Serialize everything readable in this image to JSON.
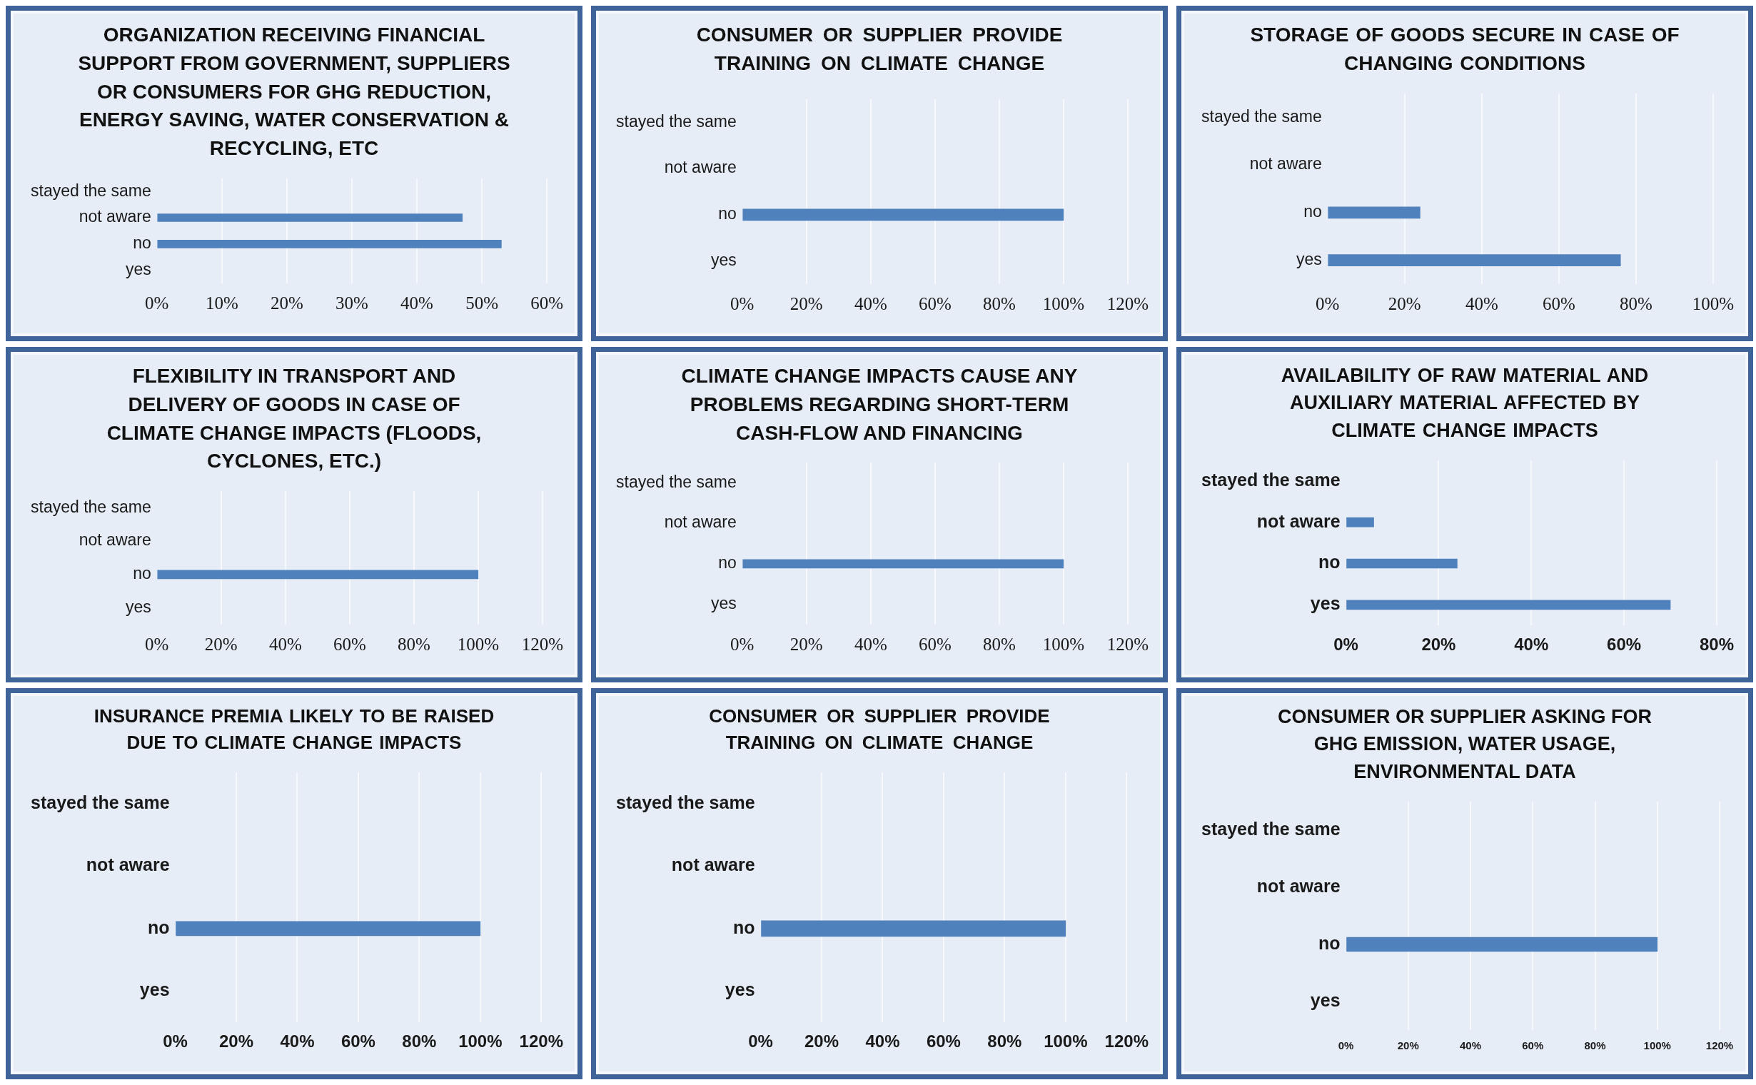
{
  "chart_data": [
    {
      "type": "bar",
      "orientation": "horizontal",
      "title": "ORGANIZATION RECEIVING FINANCIAL SUPPORT FROM GOVERNMENT, SUPPLIERS OR CONSUMERS FOR GHG REDUCTION, ENERGY SAVING, WATER CONSERVATION & RECYCLING, ETC",
      "categories": [
        "stayed the same",
        "not aware",
        "no",
        "yes"
      ],
      "values": [
        null,
        47,
        53,
        null
      ],
      "color": "#4f81bd",
      "xlim": [
        0,
        60
      ],
      "xticks": [
        {
          "value": 0,
          "label": "0%"
        },
        {
          "value": 10,
          "label": "10%"
        },
        {
          "value": 20,
          "label": "20%"
        },
        {
          "value": 30,
          "label": "30%"
        },
        {
          "value": 40,
          "label": "40%"
        },
        {
          "value": 50,
          "label": "50%"
        },
        {
          "value": 60,
          "label": "60%"
        }
      ],
      "grid": "x"
    },
    {
      "type": "bar",
      "orientation": "horizontal",
      "title": "CONSUMER OR SUPPLIER PROVIDE TRAINING ON CLIMATE CHANGE",
      "categories": [
        "stayed the same",
        "not aware",
        "no",
        "yes"
      ],
      "values": [
        null,
        null,
        100,
        null
      ],
      "color": "#4f81bd",
      "xlim": [
        0,
        120
      ],
      "xticks": [
        {
          "value": 0,
          "label": "0%"
        },
        {
          "value": 20,
          "label": "20%"
        },
        {
          "value": 40,
          "label": "40%"
        },
        {
          "value": 60,
          "label": "60%"
        },
        {
          "value": 80,
          "label": "80%"
        },
        {
          "value": 100,
          "label": "100%"
        },
        {
          "value": 120,
          "label": "120%"
        }
      ],
      "grid": "x"
    },
    {
      "type": "bar",
      "orientation": "horizontal",
      "title": "STORAGE OF GOODS SECURE IN CASE OF CHANGING CONDITIONS",
      "categories": [
        "stayed the same",
        "not aware",
        "no",
        "yes"
      ],
      "values": [
        null,
        null,
        24,
        76
      ],
      "color": "#4f81bd",
      "xlim": [
        0,
        100
      ],
      "xticks": [
        {
          "value": 0,
          "label": "0%"
        },
        {
          "value": 20,
          "label": "20%"
        },
        {
          "value": 40,
          "label": "40%"
        },
        {
          "value": 60,
          "label": "60%"
        },
        {
          "value": 80,
          "label": "80%"
        },
        {
          "value": 100,
          "label": "100%"
        }
      ],
      "grid": "x"
    },
    {
      "type": "bar",
      "orientation": "horizontal",
      "title": "FLEXIBILITY IN TRANSPORT AND DELIVERY OF GOODS IN CASE OF CLIMATE CHANGE IMPACTS (FLOODS, CYCLONES, ETC.)",
      "categories": [
        "stayed the same",
        "not aware",
        "no",
        "yes"
      ],
      "values": [
        null,
        null,
        100,
        null
      ],
      "color": "#4f81bd",
      "xlim": [
        0,
        120
      ],
      "xticks": [
        {
          "value": 0,
          "label": "0%"
        },
        {
          "value": 20,
          "label": "20%"
        },
        {
          "value": 40,
          "label": "40%"
        },
        {
          "value": 60,
          "label": "60%"
        },
        {
          "value": 80,
          "label": "80%"
        },
        {
          "value": 100,
          "label": "100%"
        },
        {
          "value": 120,
          "label": "120%"
        }
      ],
      "grid": "x"
    },
    {
      "type": "bar",
      "orientation": "horizontal",
      "title": "CLIMATE CHANGE IMPACTS CAUSE ANY PROBLEMS REGARDING SHORT-TERM CASH-FLOW AND FINANCING",
      "categories": [
        "stayed the same",
        "not aware",
        "no",
        "yes"
      ],
      "values": [
        null,
        null,
        100,
        null
      ],
      "color": "#4f81bd",
      "xlim": [
        0,
        120
      ],
      "xticks": [
        {
          "value": 0,
          "label": "0%"
        },
        {
          "value": 20,
          "label": "20%"
        },
        {
          "value": 40,
          "label": "40%"
        },
        {
          "value": 60,
          "label": "60%"
        },
        {
          "value": 80,
          "label": "80%"
        },
        {
          "value": 100,
          "label": "100%"
        },
        {
          "value": 120,
          "label": "120%"
        }
      ],
      "grid": "x"
    },
    {
      "type": "bar",
      "orientation": "horizontal",
      "title": "AVAILABILITY OF RAW MATERIAL AND AUXILIARY MATERIAL AFFECTED BY CLIMATE CHANGE IMPACTS",
      "categories": [
        "stayed the same",
        "not aware",
        "no",
        "yes"
      ],
      "values": [
        null,
        6,
        24,
        70
      ],
      "color": "#4f81bd",
      "xlim": [
        0,
        80
      ],
      "xticks": [
        {
          "value": 0,
          "label": "0%"
        },
        {
          "value": 20,
          "label": "20%"
        },
        {
          "value": 40,
          "label": "40%"
        },
        {
          "value": 60,
          "label": "60%"
        },
        {
          "value": 80,
          "label": "80%"
        }
      ],
      "grid": "x"
    },
    {
      "type": "bar",
      "orientation": "horizontal",
      "title": "INSURANCE PREMIA LIKELY TO BE RAISED DUE TO CLIMATE CHANGE IMPACTS",
      "categories": [
        "stayed the same",
        "not aware",
        "no",
        "yes"
      ],
      "values": [
        null,
        null,
        100,
        null
      ],
      "color": "#4f81bd",
      "xlim": [
        0,
        120
      ],
      "xticks": [
        {
          "value": 0,
          "label": "0%"
        },
        {
          "value": 20,
          "label": "20%"
        },
        {
          "value": 40,
          "label": "40%"
        },
        {
          "value": 60,
          "label": "60%"
        },
        {
          "value": 80,
          "label": "80%"
        },
        {
          "value": 100,
          "label": "100%"
        },
        {
          "value": 120,
          "label": "120%"
        }
      ],
      "grid": "x"
    },
    {
      "type": "bar",
      "orientation": "horizontal",
      "title": "CONSUMER OR SUPPLIER PROVIDE TRAINING ON CLIMATE CHANGE",
      "categories": [
        "stayed the same",
        "not aware",
        "no",
        "yes"
      ],
      "values": [
        null,
        null,
        100,
        null
      ],
      "color": "#4f81bd",
      "xlim": [
        0,
        120
      ],
      "xticks": [
        {
          "value": 0,
          "label": "0%"
        },
        {
          "value": 20,
          "label": "20%"
        },
        {
          "value": 40,
          "label": "40%"
        },
        {
          "value": 60,
          "label": "60%"
        },
        {
          "value": 80,
          "label": "80%"
        },
        {
          "value": 100,
          "label": "100%"
        },
        {
          "value": 120,
          "label": "120%"
        }
      ],
      "grid": "x"
    },
    {
      "type": "bar",
      "orientation": "horizontal",
      "title": "CONSUMER OR SUPPLIER ASKING FOR GHG EMISSION, WATER USAGE, ENVIRONMENTAL DATA",
      "categories": [
        "stayed the same",
        "not aware",
        "no",
        "yes"
      ],
      "values": [
        null,
        null,
        100,
        null
      ],
      "color": "#4f81bd",
      "xlim": [
        0,
        120
      ],
      "xticks": [
        {
          "value": 0,
          "label": "0%"
        },
        {
          "value": 20,
          "label": "20%"
        },
        {
          "value": 40,
          "label": "40%"
        },
        {
          "value": 60,
          "label": "60%"
        },
        {
          "value": 80,
          "label": "80%"
        },
        {
          "value": 100,
          "label": "100%"
        },
        {
          "value": 120,
          "label": "120%"
        }
      ],
      "grid": "x"
    }
  ]
}
